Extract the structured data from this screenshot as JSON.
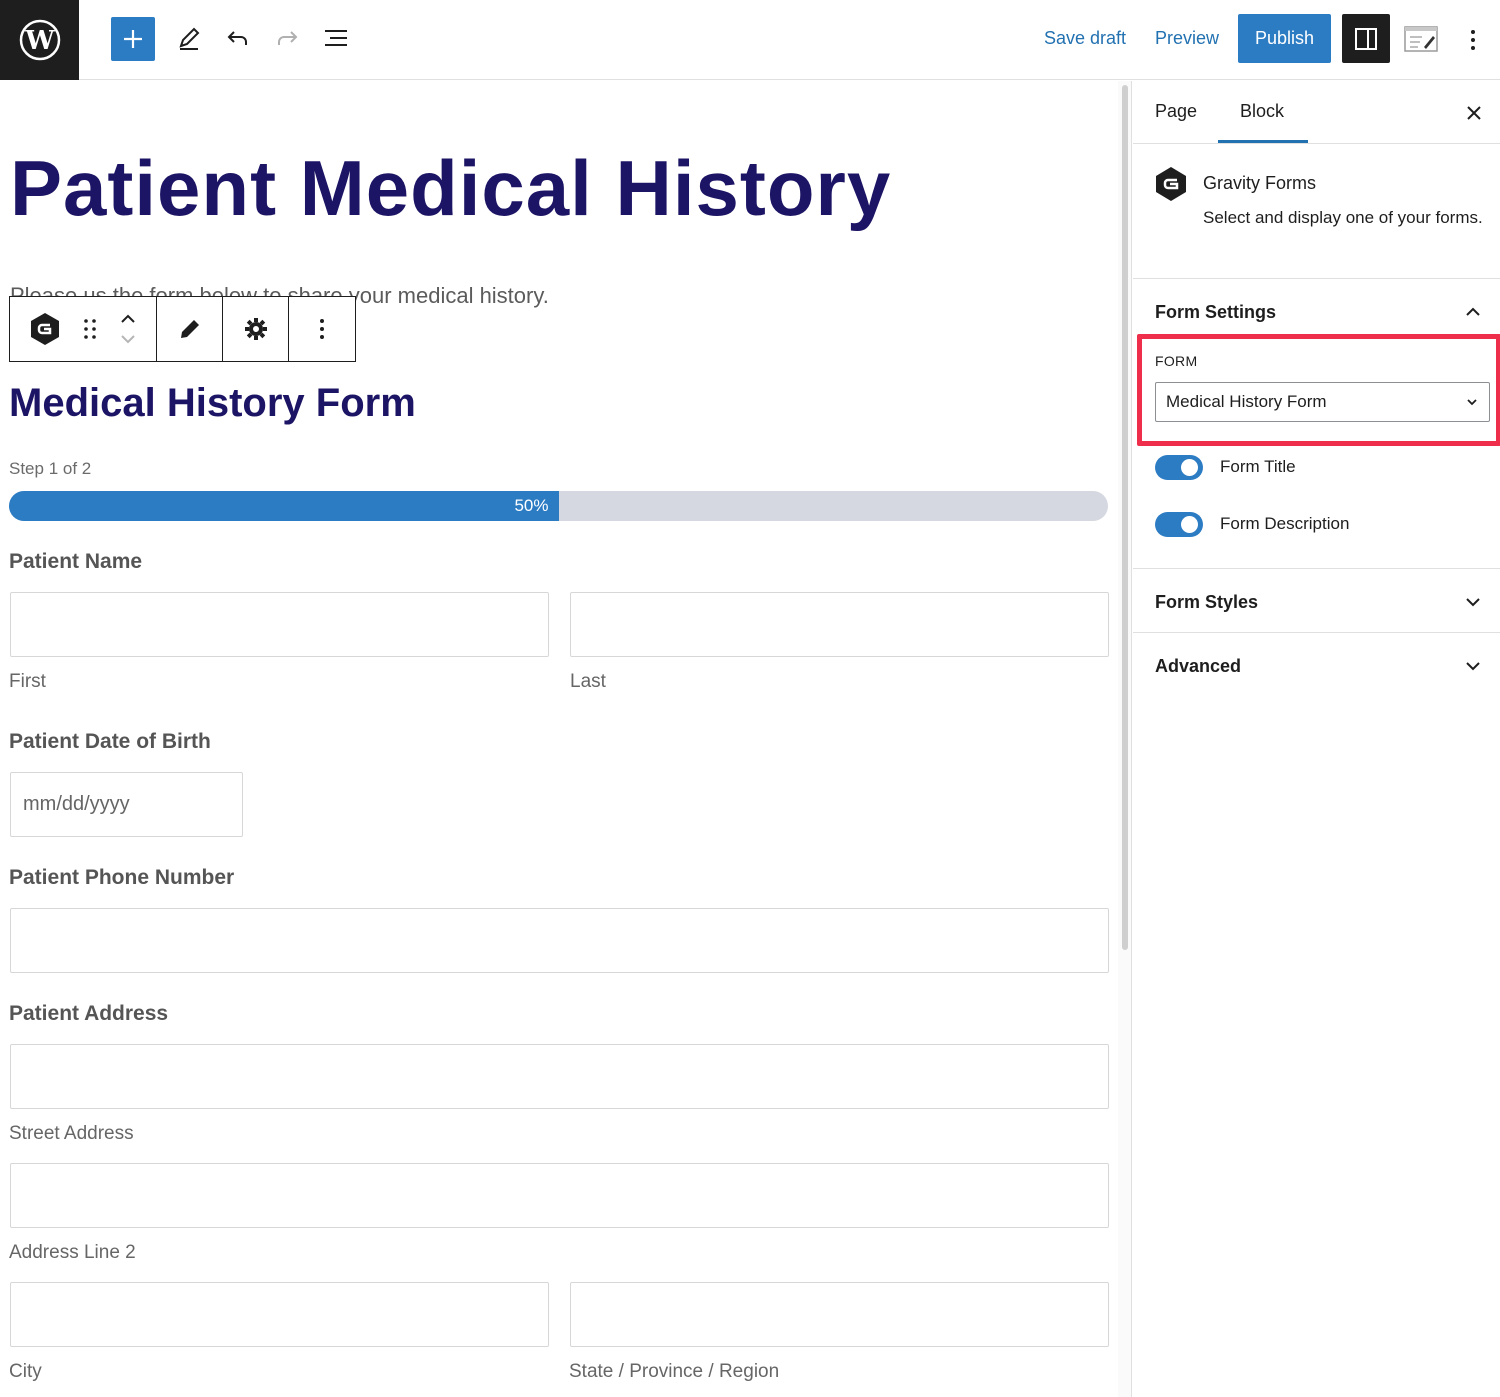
{
  "toolbar": {
    "save_draft": "Save draft",
    "preview": "Preview",
    "publish": "Publish"
  },
  "page": {
    "title": "Patient Medical History",
    "intro": "Please us the form below to share your medical history."
  },
  "form": {
    "title": "Medical History Form",
    "step": "Step 1 of 2",
    "progress": {
      "percent": 50,
      "label": "50%"
    },
    "fields": {
      "name_label": "Patient Name",
      "first_sub": "First",
      "last_sub": "Last",
      "dob_label": "Patient Date of Birth",
      "dob_placeholder": "mm/dd/yyyy",
      "phone_label": "Patient Phone Number",
      "address_label": "Patient Address",
      "street_sub": "Street Address",
      "line2_sub": "Address Line 2",
      "city_sub": "City",
      "state_sub": "State / Province / Region"
    }
  },
  "sidebar": {
    "tabs": {
      "page": "Page",
      "block": "Block"
    },
    "block": {
      "name": "Gravity Forms",
      "description": "Select and display one of your forms."
    },
    "form_settings": {
      "title": "Form Settings",
      "form_caption": "FORM",
      "selected_form": "Medical History Form",
      "toggle_title": "Form Title",
      "toggle_description": "Form Description"
    },
    "form_styles": "Form Styles",
    "advanced": "Advanced"
  },
  "colors": {
    "accent": "#2c7cc4",
    "title": "#1c1464",
    "highlight": "#ee2e4a"
  }
}
